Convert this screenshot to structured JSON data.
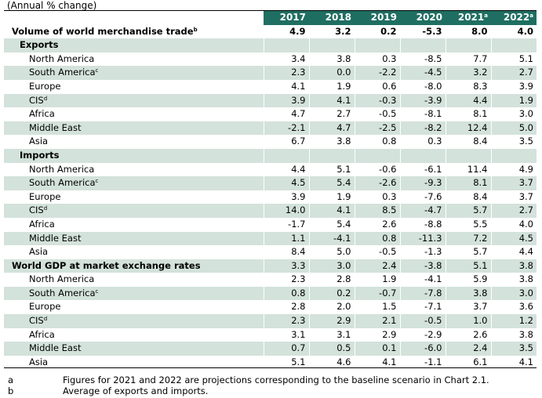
{
  "caption": "(Annual % change)",
  "headers": [
    "2017",
    "2018",
    "2019",
    "2020",
    "2021",
    "2022"
  ],
  "header_mark": "a",
  "rows": [
    {
      "label": "Volume of world merchandise trade",
      "mark": "b",
      "level": 0,
      "bold_values": true,
      "alt": false,
      "values": [
        "4.9",
        "3.2",
        "0.2",
        "-5.3",
        "8.0",
        "4.0"
      ]
    },
    {
      "label": "Exports",
      "mark": "",
      "level": 1,
      "bold_values": false,
      "alt": true,
      "values": [
        "",
        "",
        "",
        "",
        "",
        ""
      ]
    },
    {
      "label": "North America",
      "mark": "",
      "level": 2,
      "bold_values": false,
      "alt": false,
      "values": [
        "3.4",
        "3.8",
        "0.3",
        "-8.5",
        "7.7",
        "5.1"
      ]
    },
    {
      "label": "South America",
      "mark": "c",
      "level": 2,
      "bold_values": false,
      "alt": true,
      "values": [
        "2.3",
        "0.0",
        "-2.2",
        "-4.5",
        "3.2",
        "2.7"
      ]
    },
    {
      "label": "Europe",
      "mark": "",
      "level": 2,
      "bold_values": false,
      "alt": false,
      "values": [
        "4.1",
        "1.9",
        "0.6",
        "-8.0",
        "8.3",
        "3.9"
      ]
    },
    {
      "label": "CIS",
      "mark": "d",
      "level": 2,
      "bold_values": false,
      "alt": true,
      "values": [
        "3.9",
        "4.1",
        "-0.3",
        "-3.9",
        "4.4",
        "1.9"
      ]
    },
    {
      "label": "Africa",
      "mark": "",
      "level": 2,
      "bold_values": false,
      "alt": false,
      "values": [
        "4.7",
        "2.7",
        "-0.5",
        "-8.1",
        "8.1",
        "3.0"
      ]
    },
    {
      "label": "Middle East",
      "mark": "",
      "level": 2,
      "bold_values": false,
      "alt": true,
      "values": [
        "-2.1",
        "4.7",
        "-2.5",
        "-8.2",
        "12.4",
        "5.0"
      ]
    },
    {
      "label": "Asia",
      "mark": "",
      "level": 2,
      "bold_values": false,
      "alt": false,
      "values": [
        "6.7",
        "3.8",
        "0.8",
        "0.3",
        "8.4",
        "3.5"
      ]
    },
    {
      "label": "Imports",
      "mark": "",
      "level": 1,
      "bold_values": false,
      "alt": true,
      "values": [
        "",
        "",
        "",
        "",
        "",
        ""
      ]
    },
    {
      "label": "North America",
      "mark": "",
      "level": 2,
      "bold_values": false,
      "alt": false,
      "values": [
        "4.4",
        "5.1",
        "-0.6",
        "-6.1",
        "11.4",
        "4.9"
      ]
    },
    {
      "label": "South America",
      "mark": "c",
      "level": 2,
      "bold_values": false,
      "alt": true,
      "values": [
        "4.5",
        "5.4",
        "-2.6",
        "-9.3",
        "8.1",
        "3.7"
      ]
    },
    {
      "label": "Europe",
      "mark": "",
      "level": 2,
      "bold_values": false,
      "alt": false,
      "values": [
        "3.9",
        "1.9",
        "0.3",
        "-7.6",
        "8.4",
        "3.7"
      ]
    },
    {
      "label": "CIS",
      "mark": "d",
      "level": 2,
      "bold_values": false,
      "alt": true,
      "values": [
        "14.0",
        "4.1",
        "8.5",
        "-4.7",
        "5.7",
        "2.7"
      ]
    },
    {
      "label": "Africa",
      "mark": "",
      "level": 2,
      "bold_values": false,
      "alt": false,
      "values": [
        "-1.7",
        "5.4",
        "2.6",
        "-8.8",
        "5.5",
        "4.0"
      ]
    },
    {
      "label": "Middle East",
      "mark": "",
      "level": 2,
      "bold_values": false,
      "alt": true,
      "values": [
        "1.1",
        "-4.1",
        "0.8",
        "-11.3",
        "7.2",
        "4.5"
      ]
    },
    {
      "label": "Asia",
      "mark": "",
      "level": 2,
      "bold_values": false,
      "alt": false,
      "values": [
        "8.4",
        "5.0",
        "-0.5",
        "-1.3",
        "5.7",
        "4.4"
      ]
    },
    {
      "label": "World GDP at market exchange rates",
      "mark": "",
      "level": 0,
      "bold_values": false,
      "alt": true,
      "values": [
        "3.3",
        "3.0",
        "2.4",
        "-3.8",
        "5.1",
        "3.8"
      ]
    },
    {
      "label": "North America",
      "mark": "",
      "level": 2,
      "bold_values": false,
      "alt": false,
      "values": [
        "2.3",
        "2.8",
        "1.9",
        "-4.1",
        "5.9",
        "3.8"
      ]
    },
    {
      "label": "South America",
      "mark": "c",
      "level": 2,
      "bold_values": false,
      "alt": true,
      "values": [
        "0.8",
        "0.2",
        "-0.7",
        "-7.8",
        "3.8",
        "3.0"
      ]
    },
    {
      "label": "Europe",
      "mark": "",
      "level": 2,
      "bold_values": false,
      "alt": false,
      "values": [
        "2.8",
        "2.0",
        "1.5",
        "-7.1",
        "3.7",
        "3.6"
      ]
    },
    {
      "label": "CIS",
      "mark": "d",
      "level": 2,
      "bold_values": false,
      "alt": true,
      "values": [
        "2.3",
        "2.9",
        "2.1",
        "-0.5",
        "1.0",
        "1.2"
      ]
    },
    {
      "label": "Africa",
      "mark": "",
      "level": 2,
      "bold_values": false,
      "alt": false,
      "values": [
        "3.1",
        "3.1",
        "2.9",
        "-2.9",
        "2.6",
        "3.8"
      ]
    },
    {
      "label": "Middle East",
      "mark": "",
      "level": 2,
      "bold_values": false,
      "alt": true,
      "values": [
        "0.7",
        "0.5",
        "0.1",
        "-6.0",
        "2.4",
        "3.5"
      ]
    },
    {
      "label": "Asia",
      "mark": "",
      "level": 2,
      "bold_values": false,
      "alt": false,
      "values": [
        "5.1",
        "4.6",
        "4.1",
        "-1.1",
        "6.1",
        "4.1"
      ]
    }
  ],
  "notes": [
    {
      "key": "a",
      "text": "Figures for 2021 and 2022 are projections corresponding to the baseline scenario in Chart 2.1."
    },
    {
      "key": "b",
      "text": "Average of exports and imports."
    }
  ]
}
